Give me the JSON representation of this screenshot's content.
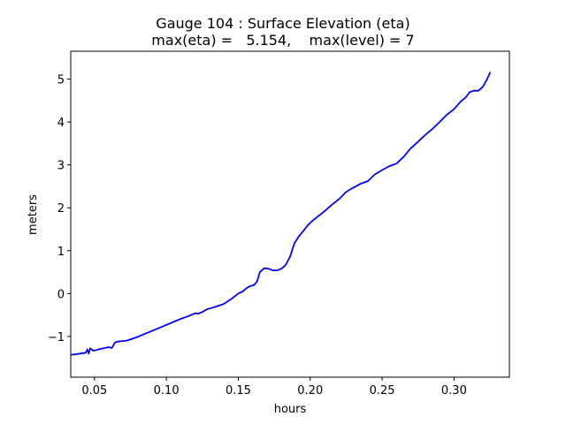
{
  "chart_data": {
    "type": "line",
    "title": "Gauge 104 : Surface Elevation (eta)",
    "subtitle": "max(eta) =   5.154,    max(level) = 7",
    "xlabel": "hours",
    "ylabel": "meters",
    "xlim": [
      0.0335,
      0.3385
    ],
    "ylim": [
      -1.95,
      5.65
    ],
    "x_ticks": [
      0.05,
      0.1,
      0.15,
      0.2,
      0.25,
      0.3
    ],
    "x_tick_labels": [
      "0.05",
      "0.10",
      "0.15",
      "0.20",
      "0.25",
      "0.30"
    ],
    "y_ticks": [
      -1,
      0,
      1,
      2,
      3,
      4,
      5
    ],
    "y_tick_labels": [
      "−1",
      "0",
      "1",
      "2",
      "3",
      "4",
      "5"
    ],
    "grid": false,
    "series": [
      {
        "color": "#0000ff",
        "x": [
          0.0335,
          0.04,
          0.044,
          0.045,
          0.046,
          0.047,
          0.048,
          0.049,
          0.05,
          0.053,
          0.057,
          0.06,
          0.062,
          0.063,
          0.064,
          0.065,
          0.068,
          0.072,
          0.075,
          0.08,
          0.085,
          0.09,
          0.095,
          0.1,
          0.105,
          0.11,
          0.115,
          0.12,
          0.122,
          0.125,
          0.128,
          0.13,
          0.133,
          0.135,
          0.14,
          0.145,
          0.15,
          0.153,
          0.156,
          0.158,
          0.161,
          0.163,
          0.165,
          0.168,
          0.171,
          0.174,
          0.177,
          0.18,
          0.183,
          0.186,
          0.189,
          0.192,
          0.195,
          0.198,
          0.201,
          0.205,
          0.21,
          0.215,
          0.22,
          0.225,
          0.23,
          0.235,
          0.24,
          0.245,
          0.25,
          0.255,
          0.26,
          0.265,
          0.27,
          0.275,
          0.28,
          0.285,
          0.29,
          0.295,
          0.3,
          0.305,
          0.308,
          0.311,
          0.314,
          0.317,
          0.32,
          0.323,
          0.325
        ],
        "y": [
          -1.43,
          -1.4,
          -1.38,
          -1.3,
          -1.4,
          -1.28,
          -1.3,
          -1.33,
          -1.33,
          -1.3,
          -1.27,
          -1.25,
          -1.27,
          -1.22,
          -1.15,
          -1.13,
          -1.11,
          -1.1,
          -1.07,
          -1.01,
          -0.94,
          -0.87,
          -0.8,
          -0.73,
          -0.66,
          -0.59,
          -0.53,
          -0.46,
          -0.47,
          -0.43,
          -0.37,
          -0.35,
          -0.32,
          -0.3,
          -0.24,
          -0.13,
          0.0,
          0.05,
          0.13,
          0.17,
          0.2,
          0.28,
          0.5,
          0.59,
          0.58,
          0.54,
          0.54,
          0.58,
          0.67,
          0.86,
          1.17,
          1.33,
          1.45,
          1.58,
          1.68,
          1.79,
          1.92,
          2.07,
          2.2,
          2.37,
          2.47,
          2.56,
          2.62,
          2.78,
          2.88,
          2.97,
          3.03,
          3.19,
          3.39,
          3.54,
          3.7,
          3.84,
          4.0,
          4.17,
          4.3,
          4.49,
          4.57,
          4.7,
          4.73,
          4.73,
          4.82,
          5.0,
          5.15
        ]
      }
    ]
  }
}
